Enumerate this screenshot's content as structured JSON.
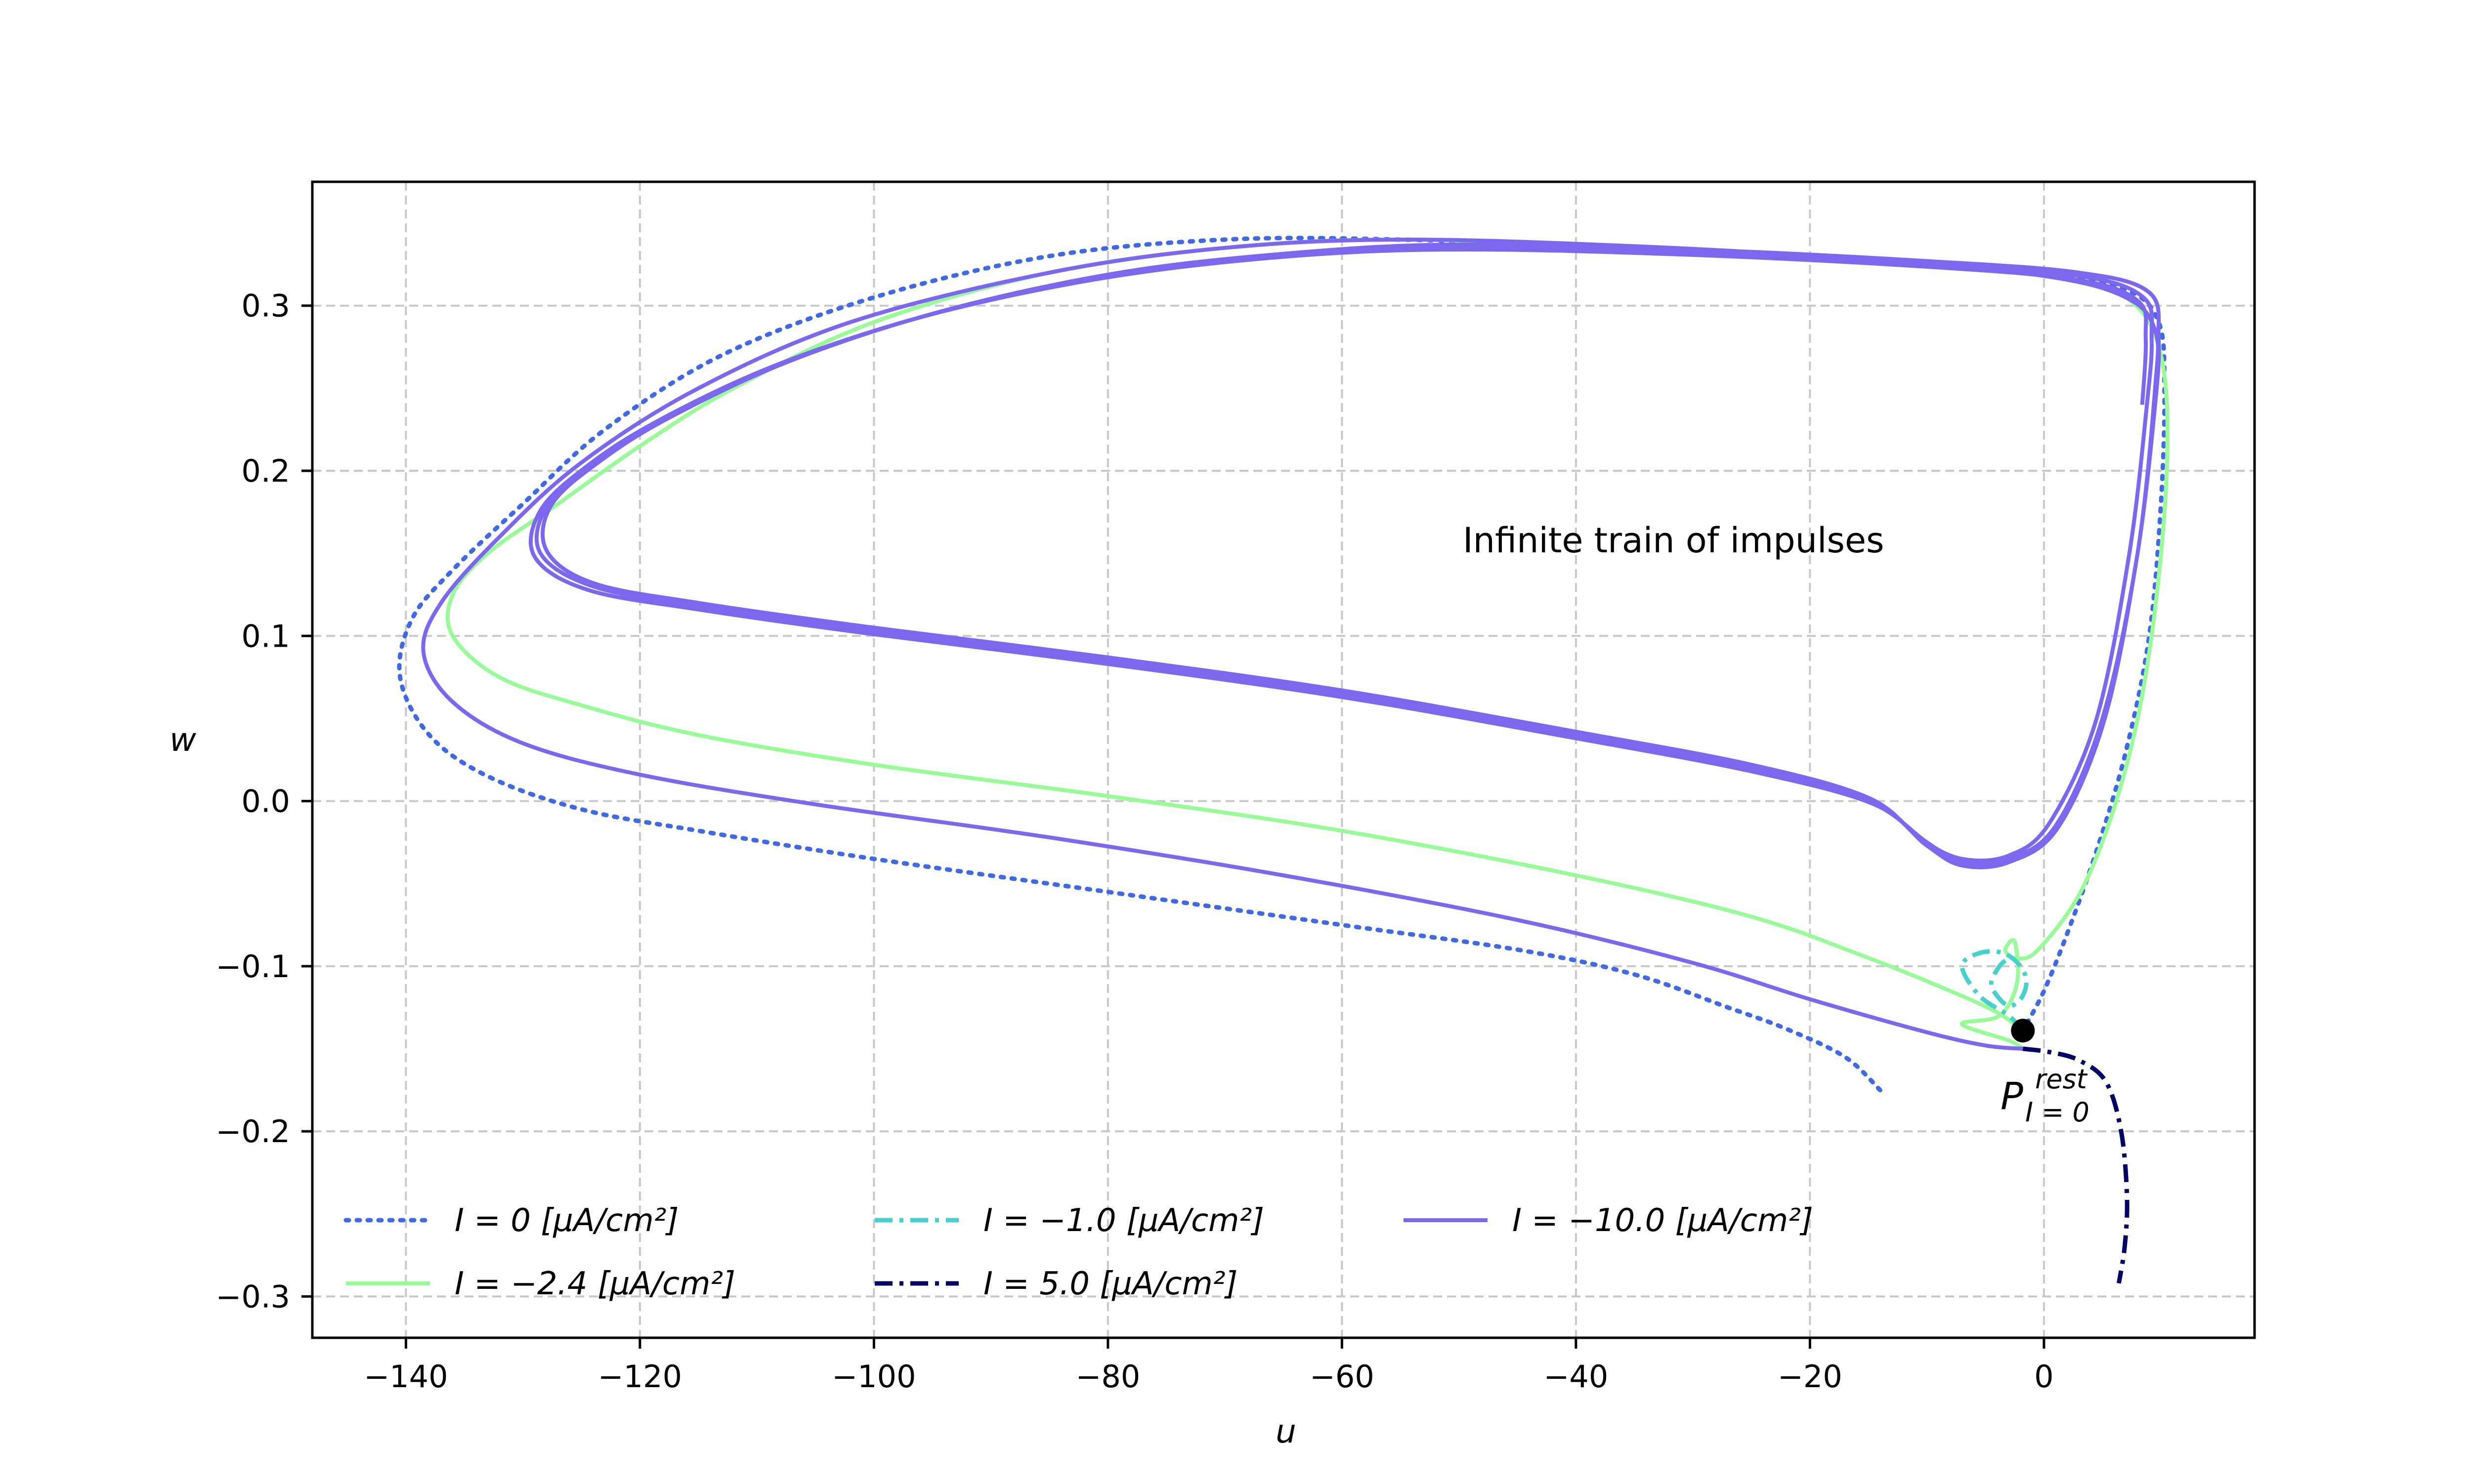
{
  "chart_data": {
    "type": "line",
    "title": "",
    "xlabel": "u",
    "ylabel": "w",
    "xlim": [
      -148,
      18
    ],
    "ylim": [
      -0.325,
      0.375
    ],
    "x_ticks": [
      {
        "value": -140,
        "label": "−140"
      },
      {
        "value": -120,
        "label": "−120"
      },
      {
        "value": -100,
        "label": "−100"
      },
      {
        "value": -80,
        "label": "−80"
      },
      {
        "value": -60,
        "label": "−60"
      },
      {
        "value": -40,
        "label": "−40"
      },
      {
        "value": -20,
        "label": "−20"
      },
      {
        "value": 0,
        "label": "0"
      }
    ],
    "y_ticks": [
      {
        "value": -0.3,
        "label": "−0.3"
      },
      {
        "value": -0.2,
        "label": "−0.2"
      },
      {
        "value": -0.1,
        "label": "−0.1"
      },
      {
        "value": 0.0,
        "label": "0.0"
      },
      {
        "value": 0.1,
        "label": "0.1"
      },
      {
        "value": 0.2,
        "label": "0.2"
      },
      {
        "value": 0.3,
        "label": "0.3"
      }
    ],
    "grid": true,
    "legend_placement": "bottom-left",
    "annotations": {
      "region_label": "Infinite train of impulses",
      "rest_point_label": "P",
      "rest_point_superscript": "rest",
      "rest_point_subscript": "I = 0",
      "rest_point": {
        "x": -1.8,
        "y": -0.139
      }
    },
    "series": [
      {
        "name": "I = 0 [μA/cm²]",
        "color": "#4169e1",
        "style": "dotted",
        "points": [
          [
            -14,
            -0.175
          ],
          [
            -17,
            -0.155
          ],
          [
            -22,
            -0.138
          ],
          [
            -27,
            -0.125
          ],
          [
            -35,
            -0.105
          ],
          [
            -45,
            -0.09
          ],
          [
            -60,
            -0.075
          ],
          [
            -80,
            -0.055
          ],
          [
            -100,
            -0.035
          ],
          [
            -115,
            -0.018
          ],
          [
            -125,
            -0.005
          ],
          [
            -133,
            0.015
          ],
          [
            -138,
            0.04
          ],
          [
            -140.5,
            0.075
          ],
          [
            -139.5,
            0.11
          ],
          [
            -136,
            0.14
          ],
          [
            -130,
            0.18
          ],
          [
            -123,
            0.225
          ],
          [
            -113,
            0.27
          ],
          [
            -100,
            0.305
          ],
          [
            -85,
            0.33
          ],
          [
            -70,
            0.34
          ],
          [
            -55,
            0.34
          ],
          [
            -35,
            0.335
          ],
          [
            -15,
            0.328
          ],
          [
            0,
            0.32
          ],
          [
            7,
            0.31
          ],
          [
            9.8,
            0.29
          ],
          [
            10.3,
            0.25
          ],
          [
            10,
            0.18
          ],
          [
            9,
            0.1
          ],
          [
            7,
            0.03
          ],
          [
            4.5,
            -0.03
          ],
          [
            2,
            -0.08
          ],
          [
            0,
            -0.115
          ],
          [
            -1.8,
            -0.139
          ]
        ]
      },
      {
        "name": "I = −2.4 [μA/cm²]",
        "color": "#98fb98",
        "style": "solid",
        "points": [
          [
            -1.8,
            -0.139
          ],
          [
            -4,
            -0.128
          ],
          [
            -8,
            -0.115
          ],
          [
            -15,
            -0.095
          ],
          [
            -25,
            -0.07
          ],
          [
            -40,
            -0.045
          ],
          [
            -60,
            -0.018
          ],
          [
            -80,
            0.003
          ],
          [
            -100,
            0.022
          ],
          [
            -115,
            0.04
          ],
          [
            -125,
            0.058
          ],
          [
            -132,
            0.075
          ],
          [
            -136,
            0.1
          ],
          [
            -136,
            0.125
          ],
          [
            -133,
            0.15
          ],
          [
            -127,
            0.18
          ],
          [
            -120,
            0.215
          ],
          [
            -112,
            0.25
          ],
          [
            -100,
            0.29
          ],
          [
            -85,
            0.32
          ],
          [
            -70,
            0.335
          ],
          [
            -55,
            0.34
          ],
          [
            -35,
            0.335
          ],
          [
            -15,
            0.326
          ],
          [
            0,
            0.318
          ],
          [
            7,
            0.305
          ],
          [
            10,
            0.27
          ],
          [
            10.5,
            0.2
          ],
          [
            9.2,
            0.1
          ],
          [
            7,
            0.02
          ],
          [
            3.5,
            -0.05
          ],
          [
            -0.5,
            -0.09
          ],
          [
            -2.5,
            -0.095
          ],
          [
            -3.3,
            -0.09
          ],
          [
            -2.5,
            -0.085
          ],
          [
            -2.3,
            -0.11
          ],
          [
            -3.8,
            -0.13
          ],
          [
            -7,
            -0.135
          ],
          [
            -3,
            -0.145
          ],
          [
            -1.8,
            -0.15
          ]
        ]
      },
      {
        "name": "I = −1.0 [μA/cm²]",
        "color": "#48d1cc",
        "style": "dashdot",
        "points": [
          [
            -1.8,
            -0.139
          ],
          [
            -3,
            -0.13
          ],
          [
            -5.5,
            -0.118
          ],
          [
            -7,
            -0.1
          ],
          [
            -5.5,
            -0.092
          ],
          [
            -3.5,
            -0.092
          ],
          [
            -2,
            -0.1
          ],
          [
            -1.5,
            -0.11
          ],
          [
            -2,
            -0.12
          ],
          [
            -3,
            -0.124
          ],
          [
            -4,
            -0.118
          ],
          [
            -4.5,
            -0.11
          ],
          [
            -3.8,
            -0.1
          ],
          [
            -3,
            -0.095
          ]
        ]
      },
      {
        "name": "I = 5.0 [μA/cm²]",
        "color": "#000066",
        "style": "dashdot",
        "points": [
          [
            -1.8,
            -0.15
          ],
          [
            0.5,
            -0.152
          ],
          [
            3,
            -0.157
          ],
          [
            5.3,
            -0.17
          ],
          [
            6.6,
            -0.2
          ],
          [
            7.1,
            -0.24
          ],
          [
            6.9,
            -0.27
          ],
          [
            6.4,
            -0.292
          ]
        ]
      },
      {
        "name": "I = −10.0 [μA/cm²]",
        "color": "#7b68ee",
        "style": "solid",
        "points": [
          [
            -1.8,
            -0.15
          ],
          [
            -5,
            -0.148
          ],
          [
            -10,
            -0.14
          ],
          [
            -20,
            -0.12
          ],
          [
            -30,
            -0.098
          ],
          [
            -45,
            -0.072
          ],
          [
            -65,
            -0.045
          ],
          [
            -85,
            -0.022
          ],
          [
            -105,
            -0.002
          ],
          [
            -120,
            0.016
          ],
          [
            -130,
            0.035
          ],
          [
            -136,
            0.06
          ],
          [
            -138.5,
            0.09
          ],
          [
            -137,
            0.12
          ],
          [
            -132,
            0.16
          ],
          [
            -125,
            0.205
          ],
          [
            -115,
            0.25
          ],
          [
            -102,
            0.29
          ],
          [
            -85,
            0.32
          ],
          [
            -70,
            0.335
          ],
          [
            -55,
            0.34
          ],
          [
            -35,
            0.336
          ],
          [
            -15,
            0.328
          ],
          [
            0,
            0.318
          ],
          [
            7,
            0.305
          ],
          [
            9.5,
            0.285
          ],
          [
            9.5,
            0.25
          ],
          [
            8,
            0.15
          ],
          [
            5,
            0.05
          ],
          [
            1,
            -0.015
          ],
          [
            -3,
            -0.035
          ],
          [
            -7,
            -0.037
          ],
          [
            -10,
            -0.025
          ],
          [
            -15,
            0.0
          ],
          [
            -25,
            0.02
          ],
          [
            -40,
            0.04
          ],
          [
            -60,
            0.065
          ],
          [
            -80,
            0.085
          ],
          [
            -100,
            0.103
          ],
          [
            -115,
            0.118
          ],
          [
            -124,
            0.13
          ],
          [
            -128.5,
            0.15
          ],
          [
            -128,
            0.178
          ],
          [
            -124,
            0.205
          ],
          [
            -118,
            0.232
          ],
          [
            -108,
            0.265
          ],
          [
            -95,
            0.295
          ],
          [
            -80,
            0.318
          ],
          [
            -65,
            0.33
          ],
          [
            -50,
            0.335
          ],
          [
            -30,
            0.332
          ],
          [
            -10,
            0.325
          ],
          [
            3,
            0.318
          ],
          [
            8.5,
            0.305
          ],
          [
            9.2,
            0.28
          ],
          [
            8.8,
            0.24
          ],
          [
            7.3,
            0.15
          ],
          [
            4.5,
            0.05
          ],
          [
            0.5,
            -0.013
          ],
          [
            -3,
            -0.033
          ],
          [
            -7,
            -0.035
          ],
          [
            -10.5,
            -0.023
          ],
          [
            -15,
            0.002
          ],
          [
            -25,
            0.022
          ],
          [
            -40,
            0.042
          ],
          [
            -60,
            0.067
          ],
          [
            -80,
            0.087
          ],
          [
            -100,
            0.105
          ],
          [
            -115,
            0.12
          ],
          [
            -124,
            0.132
          ],
          [
            -128,
            0.152
          ],
          [
            -127.5,
            0.18
          ],
          [
            -123,
            0.208
          ],
          [
            -117,
            0.234
          ],
          [
            -107,
            0.267
          ],
          [
            -94,
            0.297
          ],
          [
            -79,
            0.32
          ],
          [
            -64,
            0.332
          ],
          [
            -50,
            0.337
          ],
          [
            -30,
            0.334
          ],
          [
            -10,
            0.327
          ],
          [
            3,
            0.32
          ],
          [
            9,
            0.308
          ],
          [
            9.8,
            0.28
          ],
          [
            9.5,
            0.24
          ],
          [
            8,
            0.15
          ],
          [
            5.2,
            0.05
          ],
          [
            1.2,
            -0.016
          ],
          [
            -3,
            -0.037
          ],
          [
            -7,
            -0.039
          ],
          [
            -10,
            -0.027
          ],
          [
            -14.5,
            -0.002
          ],
          [
            -25,
            0.018
          ],
          [
            -40,
            0.038
          ],
          [
            -60,
            0.063
          ],
          [
            -80,
            0.083
          ],
          [
            -100,
            0.101
          ],
          [
            -115,
            0.116
          ],
          [
            -124.5,
            0.128
          ],
          [
            -129,
            0.148
          ],
          [
            -128.5,
            0.176
          ],
          [
            -124.5,
            0.203
          ],
          [
            -118.5,
            0.23
          ],
          [
            -108.5,
            0.263
          ],
          [
            -96,
            0.293
          ],
          [
            -81,
            0.316
          ],
          [
            -66,
            0.329
          ],
          [
            -51,
            0.334
          ],
          [
            -31,
            0.331
          ],
          [
            -11,
            0.324
          ],
          [
            2.5,
            0.316
          ],
          [
            8,
            0.303
          ],
          [
            8.7,
            0.28
          ],
          [
            8.4,
            0.24
          ]
        ]
      }
    ]
  }
}
